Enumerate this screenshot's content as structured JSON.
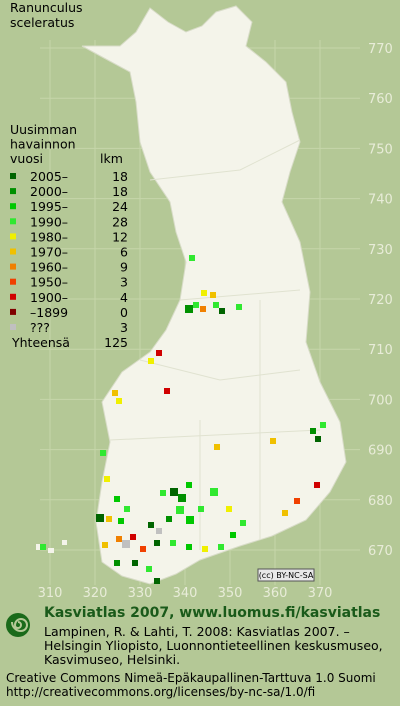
{
  "title_lines": [
    "Ranunculus",
    "sceleratus"
  ],
  "legend": {
    "header_lines": [
      "Uusimman",
      "havainnon",
      "vuosi"
    ],
    "count_header": "lkm",
    "entries": [
      {
        "label": "2005–",
        "count": 18,
        "color": "#006400"
      },
      {
        "label": "2000–",
        "count": 18,
        "color": "#009000"
      },
      {
        "label": "1995–",
        "count": 24,
        "color": "#00c800"
      },
      {
        "label": "1990–",
        "count": 28,
        "color": "#30e830"
      },
      {
        "label": "1980–",
        "count": 12,
        "color": "#f0f000"
      },
      {
        "label": "1970–",
        "count": 6,
        "color": "#f0c000"
      },
      {
        "label": "1960–",
        "count": 9,
        "color": "#f08000"
      },
      {
        "label": "1950–",
        "count": 3,
        "color": "#f04000"
      },
      {
        "label": "1900–",
        "count": 4,
        "color": "#d00000"
      },
      {
        "label": "–1899",
        "count": 0,
        "color": "#800000"
      },
      {
        "label": "???",
        "count": 3,
        "color": "#c0c0c0"
      }
    ],
    "total": {
      "label": "Yhteensä",
      "count": 125
    }
  },
  "grid": {
    "y_labels": [
      770,
      760,
      750,
      740,
      730,
      720,
      710,
      700,
      690,
      680,
      670
    ],
    "x_labels": [
      310,
      320,
      330,
      340,
      350,
      360,
      370
    ]
  },
  "license_badge": "(cc) BY-NC-SA",
  "footer": {
    "heading": "Kasviatlas 2007, www.luomus.fi/kasviatlas",
    "citation_lines": [
      "Lampinen, R. & Lahti, T. 2008: Kasviatlas 2007. –",
      "Helsingin Yliopisto, Luonnontieteellinen keskusmuseo,",
      "Kasvimuseo, Helsinki."
    ],
    "license_lines": [
      "Creative Commons Nimeä-Epäkaupallinen-Tarttuva 1.0 Suomi",
      "http://creativecommons.org/licenses/by-nc-sa/1.0/fi"
    ]
  }
}
